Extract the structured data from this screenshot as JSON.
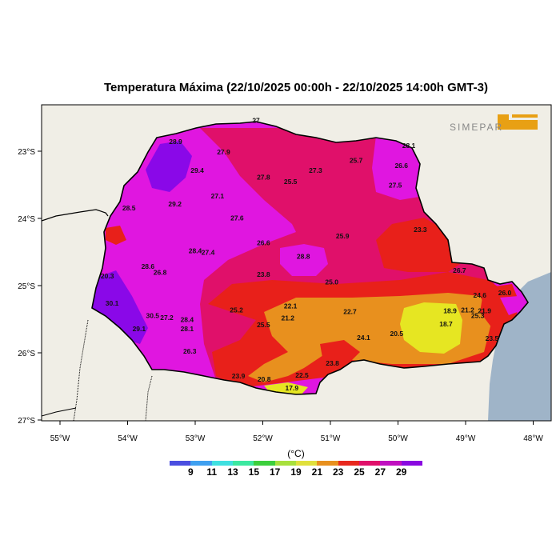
{
  "title": "Temperatura Máxima (22/10/2025 00:00h - 22/10/2025 14:00h GMT-3)",
  "logo_text": "SIMEPAR",
  "axes": {
    "lon_labels": [
      "55°W",
      "54°W",
      "53°W",
      "52°W",
      "51°W",
      "50°W",
      "49°W",
      "48°W"
    ],
    "lat_labels": [
      "23°S",
      "24°S",
      "25°S",
      "26°S",
      "27°S"
    ]
  },
  "legend": {
    "unit": "(°C)",
    "ticks": [
      "9",
      "11",
      "13",
      "15",
      "17",
      "19",
      "21",
      "23",
      "25",
      "27",
      "29"
    ],
    "colors": [
      "#4a4ee0",
      "#3fa0f0",
      "#3fe0e0",
      "#3ce8a0",
      "#3ccf3c",
      "#a8e03c",
      "#e0e03c",
      "#e8901e",
      "#e8281e",
      "#e0106a",
      "#c010c0",
      "#8a08e0"
    ]
  },
  "map_colors": {
    "background": "#f0eee6",
    "ocean": "#9fb4c8",
    "magenta": "#e016e0",
    "violet": "#8a08e8",
    "crimson": "#e0106a",
    "red": "#e8201a",
    "orange": "#e8901e",
    "yellow": "#e6e622"
  },
  "stations": [
    {
      "v": "28.9",
      "lon": -53.29,
      "lat": -22.89
    },
    {
      "v": "27.9",
      "lon": -52.58,
      "lat": -23.05
    },
    {
      "v": "29.4",
      "lon": -52.97,
      "lat": -23.32
    },
    {
      "v": "27.8",
      "lon": -51.99,
      "lat": -23.42
    },
    {
      "v": "27.3",
      "lon": -51.22,
      "lat": -23.32
    },
    {
      "v": "25.5",
      "lon": -51.59,
      "lat": -23.49
    },
    {
      "v": "25.7",
      "lon": -50.62,
      "lat": -23.17
    },
    {
      "v": "26.6",
      "lon": -49.95,
      "lat": -23.25
    },
    {
      "v": "28.1",
      "lon": -49.84,
      "lat": -22.95
    },
    {
      "v": "27.5",
      "lon": -50.04,
      "lat": -23.54
    },
    {
      "v": "27.1",
      "lon": -52.67,
      "lat": -23.7
    },
    {
      "v": "29.2",
      "lon": -53.3,
      "lat": -23.82
    },
    {
      "v": "28.5",
      "lon": -53.98,
      "lat": -23.88
    },
    {
      "v": "27.6",
      "lon": -52.38,
      "lat": -24.03
    },
    {
      "v": "23.3",
      "lon": -49.67,
      "lat": -24.2
    },
    {
      "v": "25.9",
      "lon": -50.82,
      "lat": -24.3
    },
    {
      "v": "26.6",
      "lon": -51.99,
      "lat": -24.4
    },
    {
      "v": "28.4",
      "lon": -53.0,
      "lat": -24.52
    },
    {
      "v": "27.4",
      "lon": -52.81,
      "lat": -24.54
    },
    {
      "v": "28.8",
      "lon": -51.4,
      "lat": -24.6
    },
    {
      "v": "28.6",
      "lon": -53.7,
      "lat": -24.75
    },
    {
      "v": "26.8",
      "lon": -53.52,
      "lat": -24.84
    },
    {
      "v": "20.3",
      "lon": -54.3,
      "lat": -24.89
    },
    {
      "v": "23.8",
      "lon": -51.99,
      "lat": -24.87
    },
    {
      "v": "25.0",
      "lon": -50.98,
      "lat": -24.98
    },
    {
      "v": "26.7",
      "lon": -49.09,
      "lat": -24.81
    },
    {
      "v": "24.6",
      "lon": -48.79,
      "lat": -25.18
    },
    {
      "v": "26.0",
      "lon": -48.42,
      "lat": -25.14
    },
    {
      "v": "30.1",
      "lon": -54.23,
      "lat": -25.3
    },
    {
      "v": "22.1",
      "lon": -51.59,
      "lat": -25.34
    },
    {
      "v": "25.2",
      "lon": -52.39,
      "lat": -25.4
    },
    {
      "v": "22.7",
      "lon": -50.71,
      "lat": -25.42
    },
    {
      "v": "18.9",
      "lon": -49.23,
      "lat": -25.41
    },
    {
      "v": "21.2",
      "lon": -48.97,
      "lat": -25.4
    },
    {
      "v": "21.9",
      "lon": -48.72,
      "lat": -25.41
    },
    {
      "v": "25.3",
      "lon": -48.82,
      "lat": -25.48
    },
    {
      "v": "30.5",
      "lon": -53.63,
      "lat": -25.48
    },
    {
      "v": "27.2",
      "lon": -53.42,
      "lat": -25.51
    },
    {
      "v": "28.4",
      "lon": -53.12,
      "lat": -25.54
    },
    {
      "v": "21.2",
      "lon": -51.63,
      "lat": -25.52
    },
    {
      "v": "25.5",
      "lon": -51.99,
      "lat": -25.62
    },
    {
      "v": "18.7",
      "lon": -49.29,
      "lat": -25.61
    },
    {
      "v": "28.1",
      "lon": -53.12,
      "lat": -25.68
    },
    {
      "v": "29.1",
      "lon": -53.83,
      "lat": -25.68
    },
    {
      "v": "20.5",
      "lon": -50.02,
      "lat": -25.75
    },
    {
      "v": "24.1",
      "lon": -50.51,
      "lat": -25.81
    },
    {
      "v": "23.5",
      "lon": -48.61,
      "lat": -25.82
    },
    {
      "v": "26.3",
      "lon": -53.08,
      "lat": -26.01
    },
    {
      "v": "23.8",
      "lon": -50.97,
      "lat": -26.19
    },
    {
      "v": "23.9",
      "lon": -52.36,
      "lat": -26.38
    },
    {
      "v": "22.5",
      "lon": -51.42,
      "lat": -26.37
    },
    {
      "v": "20.8",
      "lon": -51.98,
      "lat": -26.43
    },
    {
      "v": "17.9",
      "lon": -51.57,
      "lat": -26.56
    },
    {
      "v": "27",
      "lon": -52.1,
      "lat": -22.58
    }
  ]
}
